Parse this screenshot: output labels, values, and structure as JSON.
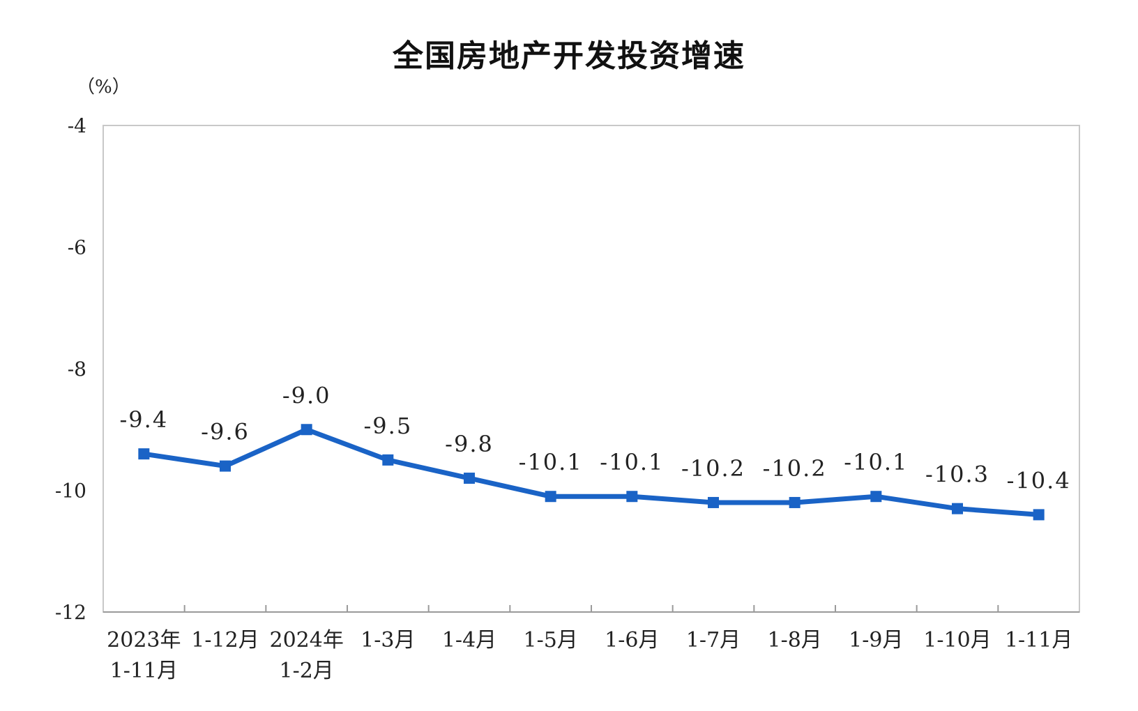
{
  "chart_data": {
    "type": "line",
    "title": "全国房地产开发投资增速",
    "ylabel": "（%）",
    "xlabel": "",
    "ylim": [
      -12,
      -4
    ],
    "yticks": [
      "-4",
      "-6",
      "-8",
      "-10",
      "-12"
    ],
    "ytick_values": [
      -4,
      -6,
      -8,
      -10,
      -12
    ],
    "categories": [
      [
        "2023年",
        "1-11月"
      ],
      [
        "1-12月"
      ],
      [
        "2024年",
        "1-2月"
      ],
      [
        "1-3月"
      ],
      [
        "1-4月"
      ],
      [
        "1-5月"
      ],
      [
        "1-6月"
      ],
      [
        "1-7月"
      ],
      [
        "1-8月"
      ],
      [
        "1-9月"
      ],
      [
        "1-10月"
      ],
      [
        "1-11月"
      ]
    ],
    "series": [
      {
        "values": [
          -9.4,
          -9.6,
          -9.0,
          -9.5,
          -9.8,
          -10.1,
          -10.1,
          -10.2,
          -10.2,
          -10.1,
          -10.3,
          -10.4
        ],
        "labels": [
          "-9.4",
          "-9.6",
          "-9.0",
          "-9.5",
          "-9.8",
          "-10.1",
          "-10.1",
          "-10.2",
          "-10.2",
          "-10.1",
          "-10.3",
          "-10.4"
        ],
        "color": "#1a63c6"
      }
    ],
    "grid": false,
    "legend": "none"
  }
}
